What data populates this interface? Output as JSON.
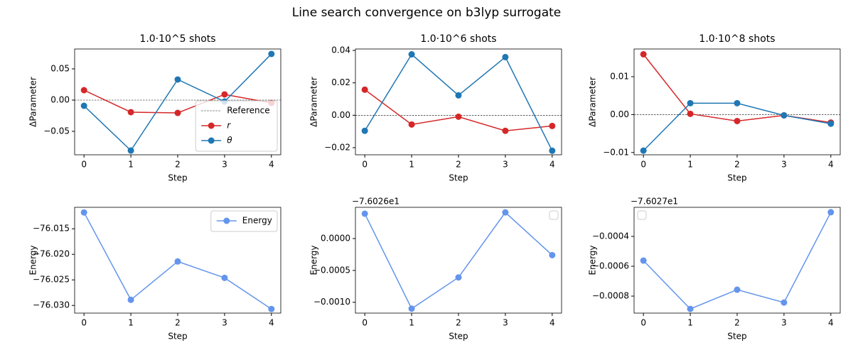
{
  "title": "Line search convergence on b3lyp surrogate",
  "chart_data": [
    {
      "type": "line",
      "title": "1.0·10^5 shots",
      "xlabel": "Step",
      "ylabel": "ΔParameter",
      "x": [
        0,
        1,
        2,
        3,
        4
      ],
      "xlim": [
        -0.2,
        4.2
      ],
      "xticks": [
        0,
        1,
        2,
        3,
        4
      ],
      "ylim": [
        -0.0875,
        0.0818
      ],
      "yticks": [
        {
          "value": -0.05,
          "label": "−0.05"
        },
        {
          "value": 0,
          "label": "0.00"
        },
        {
          "value": 0.05,
          "label": "0.05"
        }
      ],
      "reference": {
        "name": "Reference",
        "y": 0
      },
      "series": [
        {
          "name": "r",
          "color": "#d62728",
          "values": [
            0.0159,
            -0.0193,
            -0.0205,
            0.0091,
            -0.0045
          ]
        },
        {
          "name": "θ",
          "color": "#1f77b4",
          "values": [
            -0.0091,
            -0.0807,
            0.033,
            -0.0023,
            0.0739
          ]
        }
      ],
      "legend": "lower right"
    },
    {
      "type": "line",
      "title": "1.0·10^6 shots",
      "xlabel": "Step",
      "ylabel": "ΔParameter",
      "x": [
        0,
        1,
        2,
        3,
        4
      ],
      "xlim": [
        -0.2,
        4.2
      ],
      "xticks": [
        0,
        1,
        2,
        3,
        4
      ],
      "ylim": [
        -0.0244,
        0.0409
      ],
      "yticks": [
        {
          "value": -0.02,
          "label": "−0.02"
        },
        {
          "value": 0,
          "label": "0.00"
        },
        {
          "value": 0.02,
          "label": "0.02"
        },
        {
          "value": 0.04,
          "label": "0.04"
        }
      ],
      "reference": {
        "y": 0
      },
      "series": [
        {
          "color": "#d62728",
          "values": [
            0.0158,
            -0.0057,
            -0.0009,
            -0.0096,
            -0.0066
          ]
        },
        {
          "color": "#1f77b4",
          "values": [
            -0.0096,
            0.0376,
            0.0123,
            0.0359,
            -0.0219
          ]
        }
      ]
    },
    {
      "type": "line",
      "title": "1.0·10^8 shots",
      "xlabel": "Step",
      "ylabel": "ΔParameter",
      "x": [
        0,
        1,
        2,
        3,
        4
      ],
      "xlim": [
        -0.2,
        4.2
      ],
      "xticks": [
        0,
        1,
        2,
        3,
        4
      ],
      "ylim": [
        -0.0106,
        0.0173
      ],
      "yticks": [
        {
          "value": -0.01,
          "label": "−0.01"
        },
        {
          "value": 0,
          "label": "0.00"
        },
        {
          "value": 0.01,
          "label": "0.01"
        }
      ],
      "reference": {
        "y": 0
      },
      "series": [
        {
          "color": "#d62728",
          "values": [
            0.0159,
            0.0002,
            -0.0017,
            -0.0002,
            -0.0021
          ]
        },
        {
          "color": "#1f77b4",
          "values": [
            -0.0095,
            0.003,
            0.003,
            -0.0002,
            -0.0024
          ]
        }
      ]
    },
    {
      "type": "line",
      "xlabel": "Step",
      "ylabel": "Energy",
      "x": [
        0,
        1,
        2,
        3,
        4
      ],
      "xlim": [
        -0.2,
        4.2
      ],
      "xticks": [
        0,
        1,
        2,
        3,
        4
      ],
      "ylim": [
        -76.0315,
        -76.0108
      ],
      "yticks": [
        {
          "value": -76.03,
          "label": "−76.030"
        },
        {
          "value": -76.025,
          "label": "−76.025"
        },
        {
          "value": -76.02,
          "label": "−76.020"
        },
        {
          "value": -76.015,
          "label": "−76.015"
        }
      ],
      "series": [
        {
          "name": "Energy",
          "color": "#6495ed",
          "values": [
            -76.0118,
            -76.0289,
            -76.0214,
            -76.0246,
            -76.0307
          ]
        }
      ],
      "legend": "upper right"
    },
    {
      "type": "line",
      "xlabel": "Step",
      "ylabel": "Energy",
      "y_offset": "−7.6026e1",
      "x": [
        0,
        1,
        2,
        3,
        4
      ],
      "xlim": [
        -0.2,
        4.2
      ],
      "xticks": [
        0,
        1,
        2,
        3,
        4
      ],
      "ylim": [
        -0.00117,
        0.00049
      ],
      "yticks": [
        {
          "value": -0.001,
          "label": "−0.0010"
        },
        {
          "value": -0.0005,
          "label": "−0.0005"
        },
        {
          "value": 0,
          "label": "0.0000"
        }
      ],
      "series": [
        {
          "color": "#6495ed",
          "values": [
            0.00039,
            -0.0011,
            -0.00061,
            0.00041,
            -0.00026
          ]
        }
      ],
      "legend": "upper right"
    },
    {
      "type": "line",
      "xlabel": "Step",
      "ylabel": "Energy",
      "y_offset": "−7.6027e1",
      "x": [
        0,
        1,
        2,
        3,
        4
      ],
      "xlim": [
        -0.2,
        4.2
      ],
      "xticks": [
        0,
        1,
        2,
        3,
        4
      ],
      "ylim": [
        -0.000914,
        -0.000205
      ],
      "yticks": [
        {
          "value": -0.0008,
          "label": "−0.0008"
        },
        {
          "value": -0.0006,
          "label": "−0.0006"
        },
        {
          "value": -0.0004,
          "label": "−0.0004"
        }
      ],
      "series": [
        {
          "color": "#6495ed",
          "values": [
            -0.000562,
            -0.000886,
            -0.000757,
            -0.000843,
            -0.000238
          ]
        }
      ],
      "legend": "upper left"
    }
  ]
}
